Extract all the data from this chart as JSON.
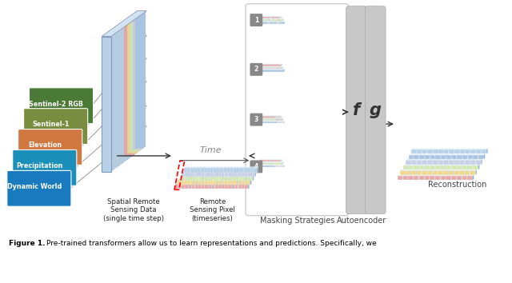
{
  "bg_color": "#ffffff",
  "layer_labels": [
    "Dynamic World",
    "Precipitation",
    "Elevation",
    "Sentinel-1",
    "Sentinel-2 RGB"
  ],
  "layer_colors": [
    "#1a7abf",
    "#1a8fba",
    "#d07840",
    "#7a8c3f",
    "#4a7a35"
  ],
  "label_texts": {
    "spatial": "Spatial Remote\nSensing Data\n(single time step)",
    "pixel": "Remote\nSensing Pixel\n(timeseries)",
    "masking": "Masking Strategies",
    "autoencoder": "Autoencoder",
    "reconstruction": "Reconstruction",
    "time": "Time",
    "f": "f",
    "g": "g"
  },
  "stripe_colors": [
    "#e8a8a8",
    "#f0d890",
    "#d4e8b0",
    "#c8d0e8",
    "#a8c4e0"
  ],
  "cube_face": "#b8d0e8",
  "cube_top": "#d0e4f4",
  "cube_side": "#8aaec8",
  "autoencoder_color": "#c0c0c0",
  "num_label_color": "#888888",
  "fig_width": 6.4,
  "fig_height": 3.54,
  "dpi": 100
}
